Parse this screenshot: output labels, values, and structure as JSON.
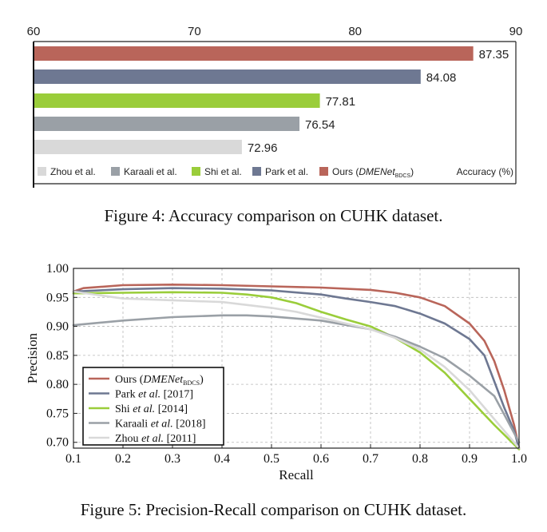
{
  "colors": {
    "ours": "#b9655a",
    "park": "#6e7892",
    "shi": "#9acd3a",
    "karaali": "#9aa0a6",
    "zhou": "#d9d9d9"
  },
  "figure4": {
    "caption": "Figure 4: Accuracy comparison on CUHK dataset.",
    "legend_accuracy": "Accuracy (%)",
    "ours_label": "Ours (",
    "ours_italic": "DMENet",
    "ours_sub": "BDCS",
    "ours_close": ")"
  },
  "figure5": {
    "caption": "Figure 5: Precision-Recall comparison on CUHK dataset.",
    "legend": [
      {
        "key": "ours",
        "pre": "Ours (",
        "ital": "DMENet",
        "sub": "BDCS",
        "post": ")"
      },
      {
        "key": "park",
        "pre": "Park ",
        "ital": "et al.",
        "sub": "",
        "post": " [2017]"
      },
      {
        "key": "shi",
        "pre": "Shi ",
        "ital": "et al.",
        "sub": "",
        "post": " [2014]"
      },
      {
        "key": "karaali",
        "pre": "Karaali ",
        "ital": "et al.",
        "sub": "",
        "post": " [2018]"
      },
      {
        "key": "zhou",
        "pre": "Zhou ",
        "ital": "et al.",
        "sub": "",
        "post": " [2011]"
      }
    ]
  },
  "chart_data": [
    {
      "type": "bar",
      "orientation": "horizontal",
      "categories": [
        "Ours (DMENet BDCS)",
        "Park et al.",
        "Shi et al.",
        "Karaali et al.",
        "Zhou et al."
      ],
      "values": [
        87.35,
        84.08,
        77.81,
        76.54,
        72.96
      ],
      "value_labels": [
        "87.35",
        "84.08",
        "77.81",
        "76.54",
        "72.96"
      ],
      "xlim": [
        60,
        90
      ],
      "xticks": [
        60,
        70,
        80,
        90
      ],
      "xtick_labels": [
        "60",
        "70",
        "80",
        "90"
      ],
      "legend_order": [
        "Zhou et al.",
        "Karaali et al.",
        "Shi et al.",
        "Park et al.",
        "Ours (DMENet BDCS)"
      ],
      "legend_labels": [
        "Zhou et al.",
        "Karaali et al.",
        "Shi et al.",
        "Park et al."
      ],
      "legend_position": "bottom",
      "grid": false
    },
    {
      "type": "line",
      "xlabel": "Recall",
      "ylabel": "Precision",
      "xlim": [
        0.1,
        1.0
      ],
      "ylim": [
        0.69,
        1.0
      ],
      "xticks": [
        0.1,
        0.2,
        0.3,
        0.4,
        0.5,
        0.6,
        0.7,
        0.8,
        0.9,
        1.0
      ],
      "xtick_labels": [
        "0.1",
        "0.2",
        "0.3",
        "0.4",
        "0.5",
        "0.6",
        "0.7",
        "0.8",
        "0.9",
        "1.0"
      ],
      "yticks": [
        0.7,
        0.75,
        0.8,
        0.85,
        0.9,
        0.95,
        1.0
      ],
      "ytick_labels": [
        "0.70",
        "0.75",
        "0.80",
        "0.85",
        "0.90",
        "0.95",
        "1.00"
      ],
      "grid": true,
      "legend_position": "bottom-left",
      "series": [
        {
          "name": "Ours (DMENet BDCS)",
          "key": "ours",
          "x": [
            0.1,
            0.12,
            0.2,
            0.3,
            0.4,
            0.5,
            0.6,
            0.7,
            0.75,
            0.8,
            0.85,
            0.9,
            0.93,
            0.95,
            0.97,
            0.99,
            1.0
          ],
          "y": [
            0.96,
            0.966,
            0.971,
            0.972,
            0.971,
            0.969,
            0.967,
            0.963,
            0.958,
            0.95,
            0.935,
            0.905,
            0.875,
            0.84,
            0.79,
            0.73,
            0.69
          ]
        },
        {
          "name": "Park et al. [2017]",
          "key": "park",
          "x": [
            0.1,
            0.2,
            0.3,
            0.4,
            0.5,
            0.6,
            0.65,
            0.7,
            0.75,
            0.8,
            0.85,
            0.9,
            0.93,
            0.95,
            0.97,
            0.99,
            1.0
          ],
          "y": [
            0.96,
            0.964,
            0.966,
            0.965,
            0.962,
            0.955,
            0.948,
            0.942,
            0.935,
            0.922,
            0.905,
            0.878,
            0.85,
            0.805,
            0.76,
            0.72,
            0.69
          ]
        },
        {
          "name": "Shi et al. [2014]",
          "key": "shi",
          "x": [
            0.1,
            0.2,
            0.3,
            0.4,
            0.45,
            0.5,
            0.55,
            0.6,
            0.65,
            0.7,
            0.75,
            0.8,
            0.85,
            0.9,
            0.95,
            1.0
          ],
          "y": [
            0.957,
            0.958,
            0.959,
            0.958,
            0.955,
            0.95,
            0.94,
            0.925,
            0.912,
            0.9,
            0.88,
            0.855,
            0.82,
            0.775,
            0.73,
            0.688
          ]
        },
        {
          "name": "Karaali et al. [2018]",
          "key": "karaali",
          "x": [
            0.1,
            0.2,
            0.3,
            0.4,
            0.45,
            0.5,
            0.6,
            0.7,
            0.75,
            0.8,
            0.85,
            0.9,
            0.95,
            1.0
          ],
          "y": [
            0.902,
            0.91,
            0.916,
            0.919,
            0.919,
            0.917,
            0.91,
            0.895,
            0.882,
            0.865,
            0.845,
            0.815,
            0.78,
            0.7
          ]
        },
        {
          "name": "Zhou et al. [2011]",
          "key": "zhou",
          "x": [
            0.1,
            0.15,
            0.2,
            0.3,
            0.4,
            0.5,
            0.55,
            0.6,
            0.65,
            0.7,
            0.75,
            0.8,
            0.85,
            0.9,
            0.95,
            1.0
          ],
          "y": [
            0.96,
            0.954,
            0.948,
            0.945,
            0.942,
            0.932,
            0.925,
            0.915,
            0.905,
            0.895,
            0.88,
            0.86,
            0.83,
            0.79,
            0.74,
            0.69
          ]
        }
      ]
    }
  ]
}
